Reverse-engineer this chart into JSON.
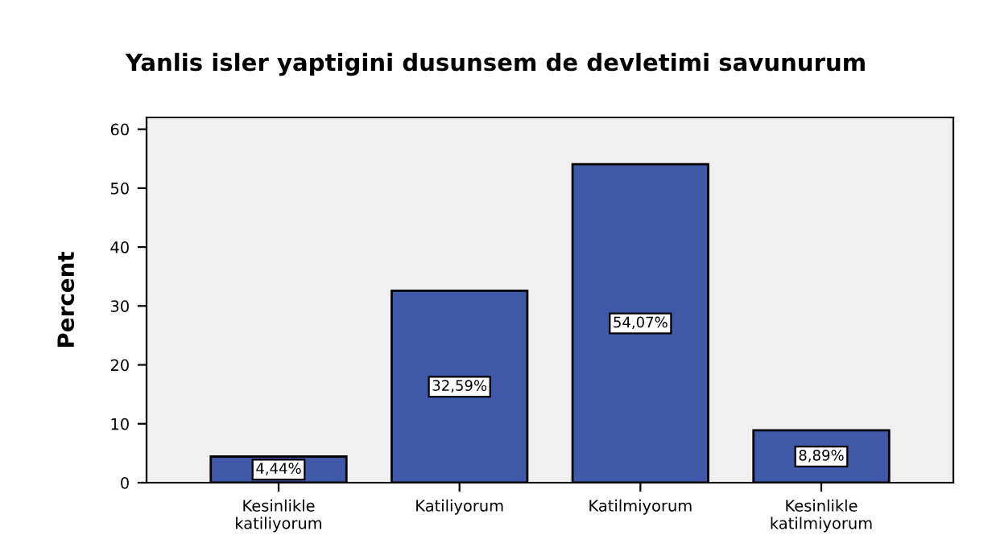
{
  "chart_data": {
    "type": "bar",
    "title": "Yanlis isler yaptigini dusunsem de devletimi savunurum",
    "ylabel": "Percent",
    "categories": [
      "Kesinlikle\nkatiliyorum",
      "Katiliyorum",
      "Katilmiyorum",
      "Kesinlikle\nkatilmiyorum"
    ],
    "values": [
      4.44,
      32.59,
      54.07,
      8.89
    ],
    "value_labels": [
      "4,44%",
      "32,59%",
      "54,07%",
      "8,89%"
    ],
    "color": "#3f58a8",
    "ylim": [
      0,
      62
    ],
    "yticks": [
      0,
      10,
      20,
      30,
      40,
      50,
      60
    ],
    "grid": false
  }
}
